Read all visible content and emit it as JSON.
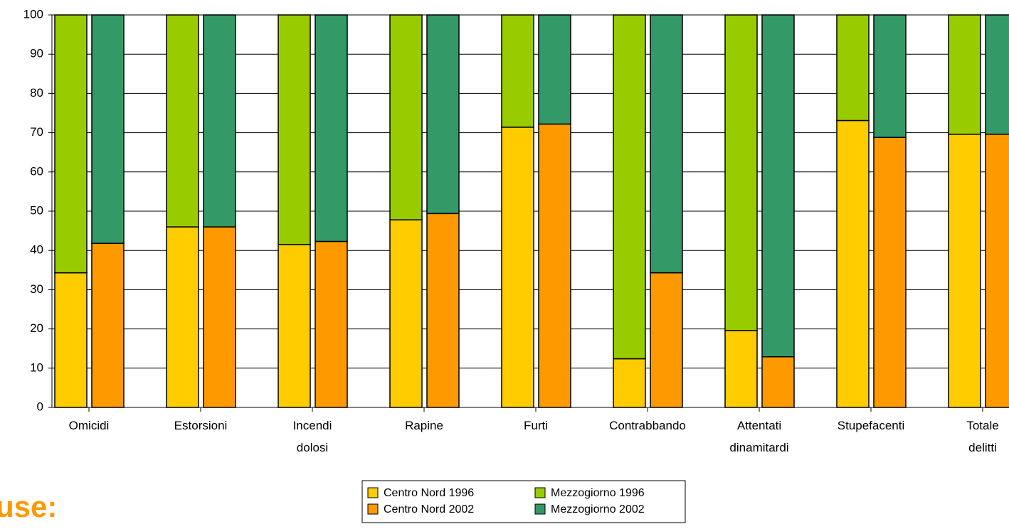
{
  "chart_data": {
    "type": "bar",
    "categories": [
      "Omicidi",
      "Estorsioni",
      "Incendi dolosi",
      "Rapine",
      "Furti",
      "Contrabbando",
      "Attentati dinamitardi",
      "Stupefacenti",
      "Totale delitti"
    ],
    "series": [
      {
        "name": "Centro Nord 1996",
        "color": "#ffcc00",
        "values": [
          34.3,
          46,
          41.5,
          47.8,
          71.4,
          12.4,
          19.6,
          73.1,
          69.6
        ]
      },
      {
        "name": "Centro Nord 2002",
        "color": "#ff9900",
        "values": [
          41.8,
          46,
          42.3,
          49.4,
          72.2,
          34.3,
          12.9,
          68.8,
          69.6
        ]
      },
      {
        "name": "Mezzogiorno 1996",
        "color": "#99cc00",
        "values": [
          65.7,
          54,
          58.5,
          52.2,
          28.6,
          87.6,
          80.4,
          26.9,
          30.4
        ]
      },
      {
        "name": "Mezzogiorno 2002",
        "color": "#339966",
        "values": [
          58.2,
          54,
          57.7,
          50.6,
          27.8,
          65.7,
          87.1,
          31.2,
          30.4
        ]
      }
    ],
    "ylim": [
      0,
      100
    ],
    "yticks": [
      0,
      10,
      20,
      30,
      40,
      50,
      60,
      70,
      80,
      90,
      100
    ],
    "grid": true,
    "annotation": "use:"
  }
}
